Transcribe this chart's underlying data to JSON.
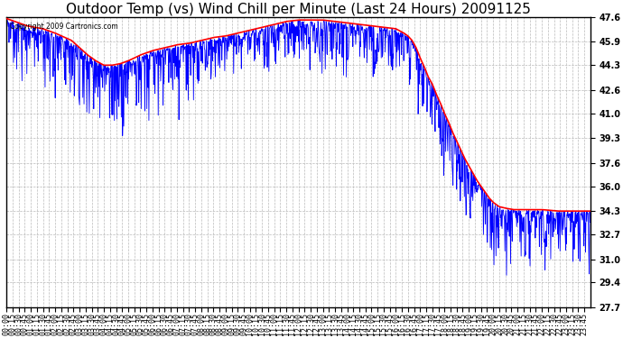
{
  "title": "Outdoor Temp (vs) Wind Chill per Minute (Last 24 Hours) 20091125",
  "copyright": "Copyright 2009 Cartronics.com",
  "ylabel_right_ticks": [
    47.6,
    45.9,
    44.3,
    42.6,
    41.0,
    39.3,
    37.6,
    36.0,
    34.3,
    32.7,
    31.0,
    29.4,
    27.7
  ],
  "ymin": 27.7,
  "ymax": 47.6,
  "temp_color": "red",
  "windchill_color": "blue",
  "background_color": "white",
  "grid_color": "#bbbbbb",
  "title_fontsize": 11,
  "tick_fontsize": 6,
  "n_minutes": 1440,
  "figwidth": 6.9,
  "figheight": 3.75,
  "dpi": 100
}
